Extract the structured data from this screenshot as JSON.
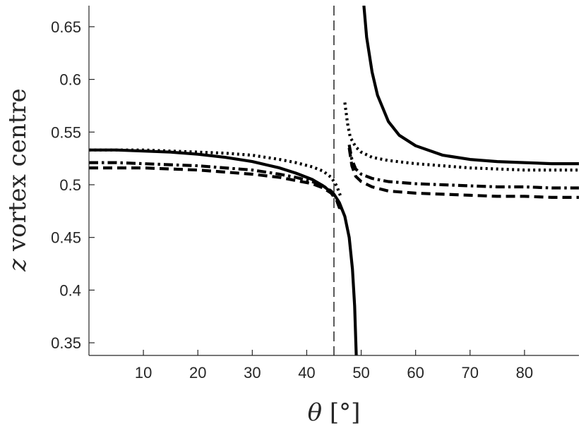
{
  "chart_data": {
    "type": "line",
    "title": "",
    "xlabel": "θ [°]",
    "ylabel": "z vortex centre",
    "xlim": [
      0,
      90
    ],
    "ylim": [
      0.338,
      0.67
    ],
    "xticks": [
      10,
      20,
      30,
      40,
      50,
      60,
      70,
      80
    ],
    "xtick_labels": [
      "10",
      "20",
      "30",
      "40",
      "50",
      "60",
      "70",
      "80"
    ],
    "yticks": [
      0.35,
      0.4,
      0.45,
      0.5,
      0.55,
      0.6,
      0.65
    ],
    "ytick_labels": [
      "0.35",
      "0.4",
      "0.45",
      "0.5",
      "0.55",
      "0.6",
      "0.65"
    ],
    "grid": false,
    "reference_line": {
      "x": 45,
      "style": "dashed"
    },
    "series": [
      {
        "style": "solid",
        "color": "#000000",
        "segments": [
          {
            "x": [
              0,
              5,
              10,
              15,
              20,
              25,
              30,
              35,
              38,
              41,
              43,
              45,
              46,
              47,
              47.8,
              48.4,
              48.8,
              49.1
            ],
            "y": [
              0.533,
              0.533,
              0.532,
              0.531,
              0.529,
              0.526,
              0.522,
              0.516,
              0.511,
              0.505,
              0.499,
              0.491,
              0.483,
              0.47,
              0.45,
              0.42,
              0.385,
              0.338
            ]
          },
          {
            "x": [
              50.5,
              51,
              52,
              53,
              55,
              57,
              60,
              65,
              70,
              75,
              80,
              85,
              90
            ],
            "y": [
              0.67,
              0.64,
              0.607,
              0.585,
              0.56,
              0.547,
              0.537,
              0.528,
              0.524,
              0.522,
              0.521,
              0.52,
              0.52
            ]
          }
        ]
      },
      {
        "style": "dotted",
        "color": "#000000",
        "segments": [
          {
            "x": [
              0,
              5,
              10,
              15,
              20,
              25,
              30,
              35,
              38,
              41,
              43,
              44.5,
              45.5,
              46.3
            ],
            "y": [
              0.533,
              0.533,
              0.533,
              0.532,
              0.531,
              0.53,
              0.528,
              0.524,
              0.521,
              0.517,
              0.513,
              0.507,
              0.499,
              0.488
            ]
          },
          {
            "x": [
              47,
              47.5,
              48,
              49,
              50,
              52,
              55,
              60,
              65,
              70,
              75,
              80,
              85,
              90
            ],
            "y": [
              0.578,
              0.558,
              0.545,
              0.536,
              0.531,
              0.526,
              0.523,
              0.52,
              0.518,
              0.516,
              0.515,
              0.514,
              0.514,
              0.514
            ]
          }
        ]
      },
      {
        "style": "dashdot",
        "color": "#000000",
        "segments": [
          {
            "x": [
              0,
              5,
              10,
              15,
              20,
              25,
              30,
              35,
              38,
              41,
              43,
              44.5,
              45.5,
              46.3
            ],
            "y": [
              0.521,
              0.521,
              0.52,
              0.519,
              0.518,
              0.516,
              0.514,
              0.51,
              0.507,
              0.503,
              0.499,
              0.494,
              0.487,
              0.477
            ]
          },
          {
            "x": [
              47.8,
              48.3,
              49,
              50,
              52,
              55,
              60,
              65,
              70,
              75,
              80,
              85,
              90
            ],
            "y": [
              0.538,
              0.524,
              0.515,
              0.51,
              0.506,
              0.503,
              0.501,
              0.5,
              0.499,
              0.498,
              0.498,
              0.497,
              0.497
            ]
          }
        ]
      },
      {
        "style": "dashed",
        "color": "#000000",
        "segments": [
          {
            "x": [
              0,
              5,
              10,
              15,
              20,
              25,
              30,
              35,
              38,
              41,
              43,
              44.5,
              45.5,
              46.3
            ],
            "y": [
              0.516,
              0.516,
              0.516,
              0.515,
              0.514,
              0.512,
              0.51,
              0.507,
              0.504,
              0.501,
              0.497,
              0.492,
              0.485,
              0.474
            ]
          },
          {
            "x": [
              47.8,
              48.3,
              49,
              50,
              52,
              55,
              60,
              65,
              70,
              75,
              80,
              85,
              90
            ],
            "y": [
              0.535,
              0.518,
              0.508,
              0.503,
              0.498,
              0.494,
              0.492,
              0.491,
              0.49,
              0.489,
              0.489,
              0.488,
              0.488
            ]
          }
        ]
      }
    ]
  }
}
